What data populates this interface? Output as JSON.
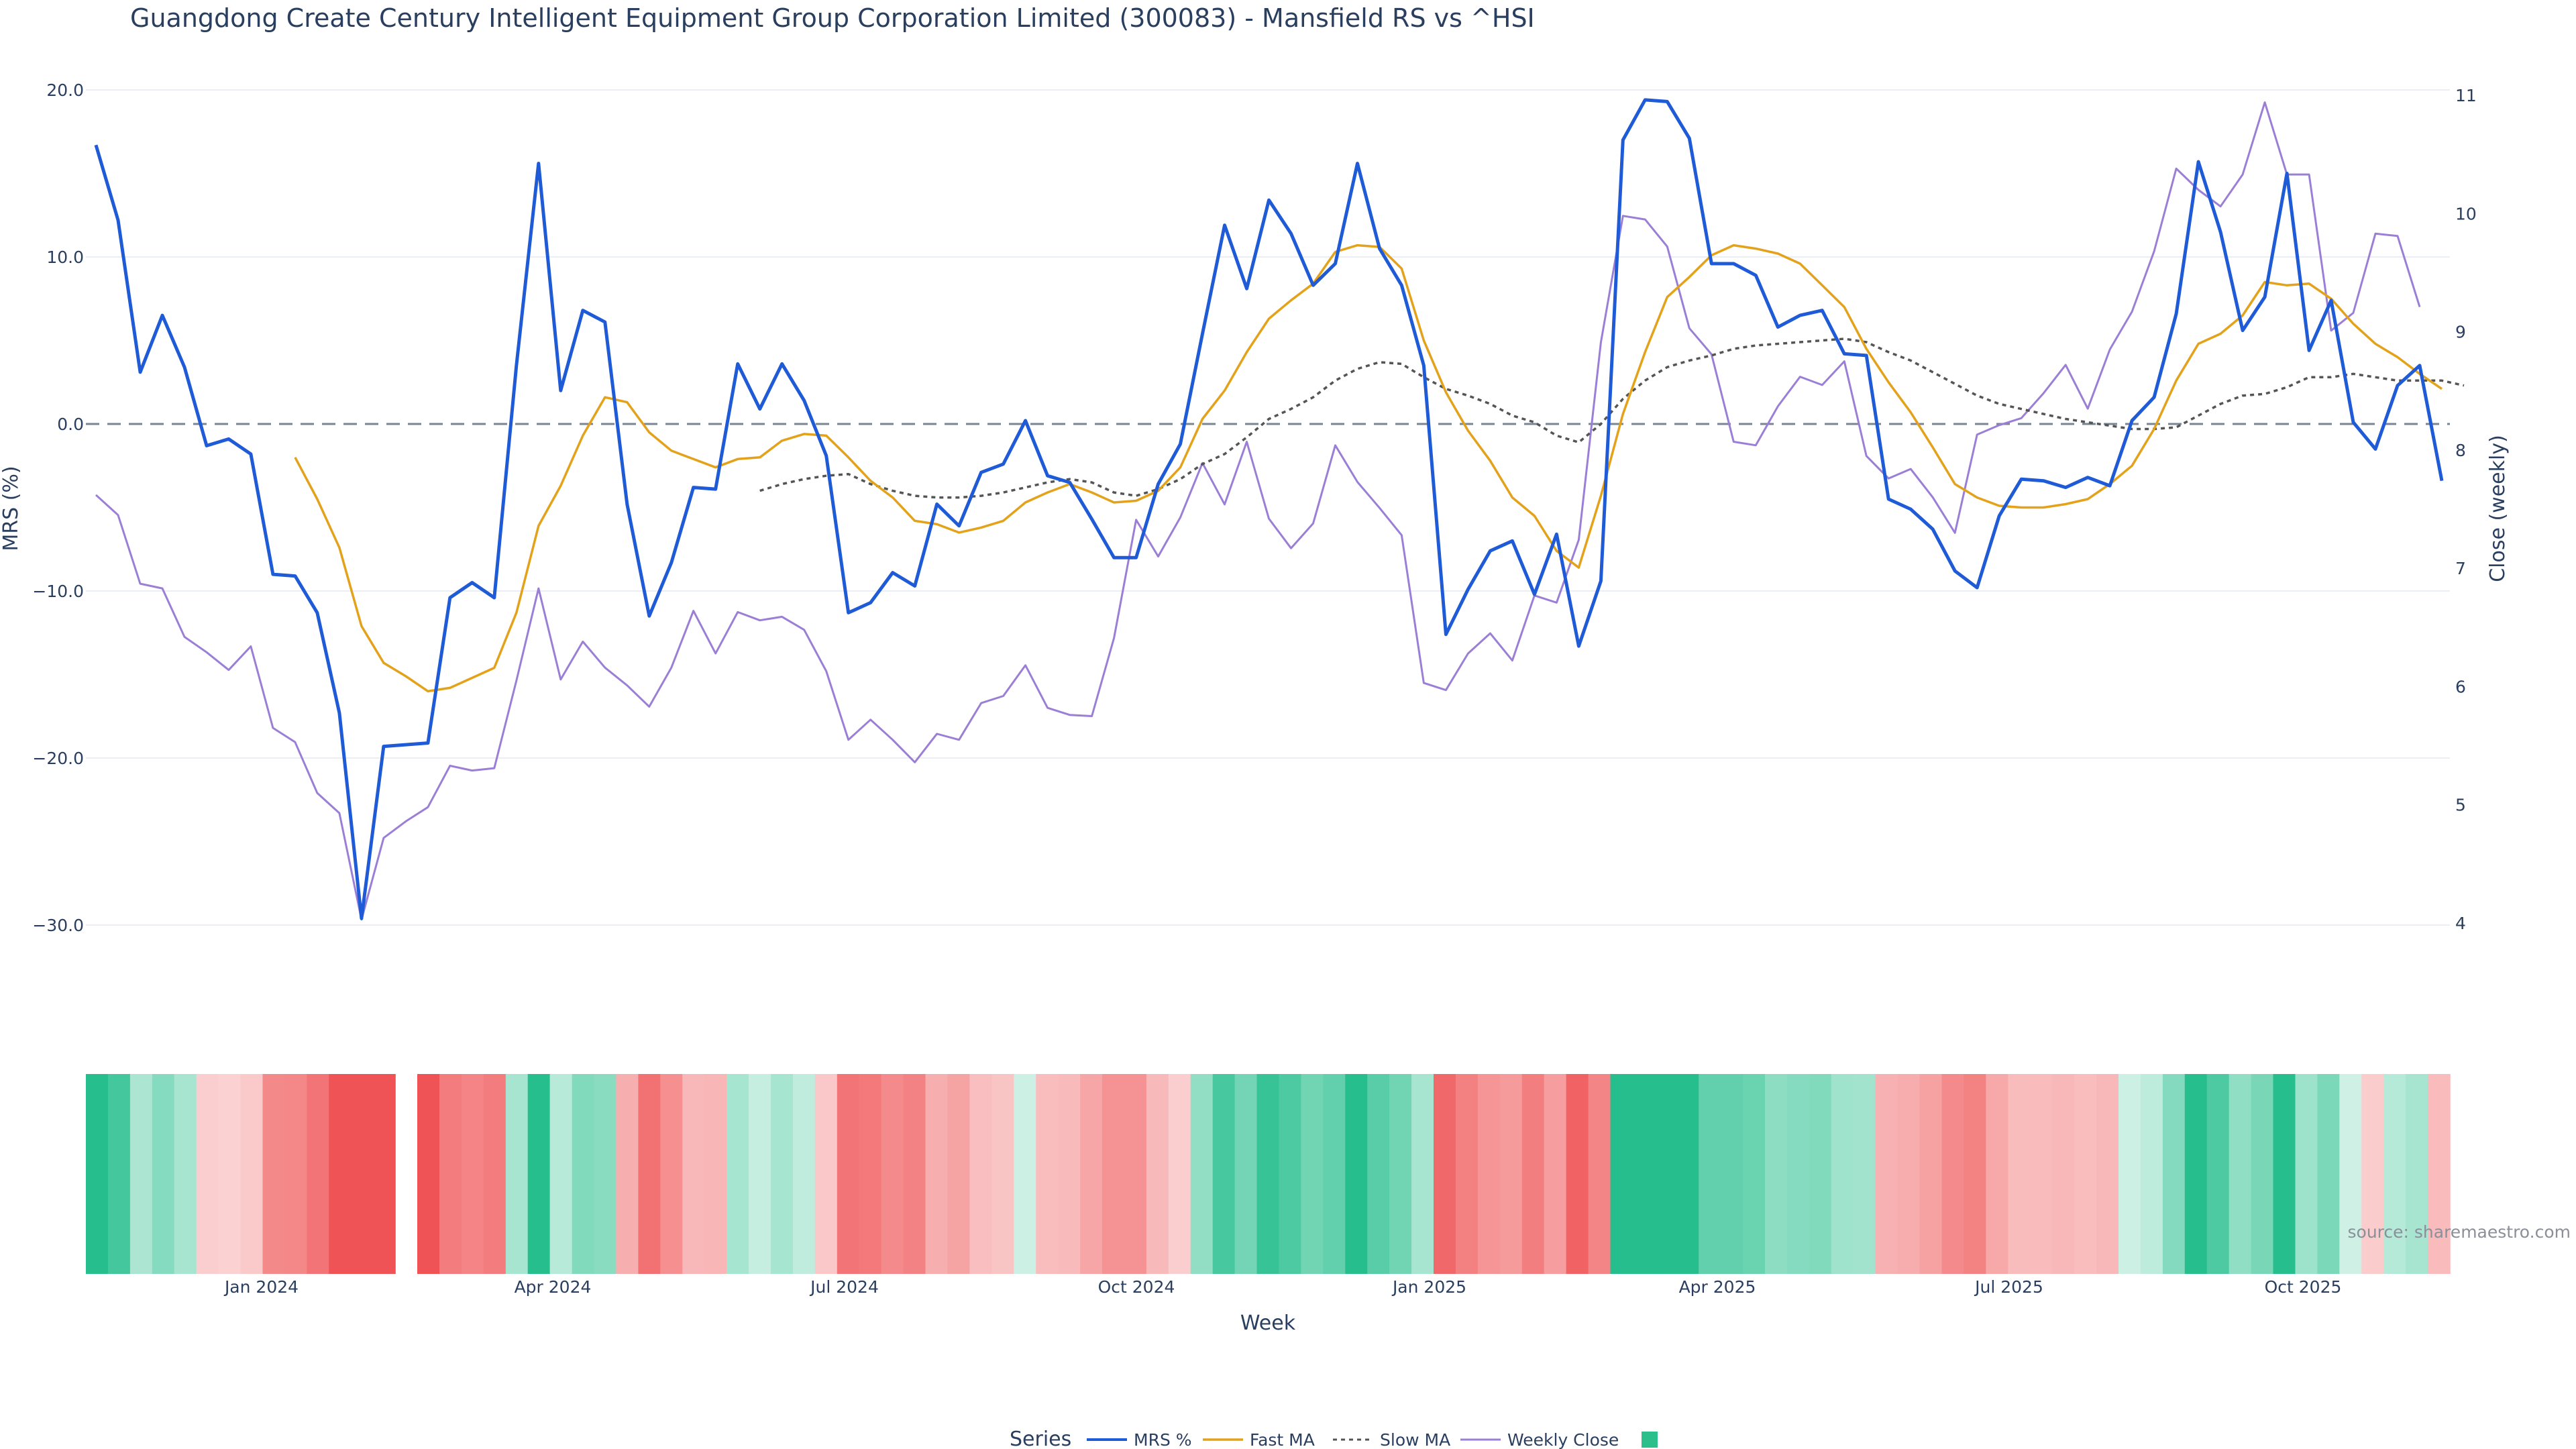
{
  "chart_data": {
    "type": "line",
    "title": "Guangdong Create Century Intelligent Equipment Group Corporation Limited (300083) - Mansfield RS vs ^HSI",
    "xlabel": "Week",
    "ylabel_left": "MRS (%)",
    "ylabel_right": "Close (weekly)",
    "ylim_left": [
      -30,
      20
    ],
    "ylim_right": [
      4,
      11
    ],
    "yticks_left": [
      "20.0",
      "10.0",
      "0.0",
      "−10.0",
      "−20.0",
      "−30.0"
    ],
    "yticks_right": [
      "11",
      "10",
      "9",
      "8",
      "7",
      "6",
      "5",
      "4"
    ],
    "x_tick_labels": [
      "Jan 2024",
      "Apr 2024",
      "Jul 2024",
      "Oct 2024",
      "Jan 2025",
      "Apr 2025",
      "Jul 2025",
      "Oct 2025"
    ],
    "legend_title": "Series",
    "source": "source: sharemaestro.com",
    "series": [
      {
        "name": "MRS %",
        "color": "#1f5bd6",
        "axis": "left",
        "values": [
          16.7,
          12.2,
          3.1,
          6.5,
          3.4,
          -1.3,
          -0.9,
          -1.8,
          -9.0,
          -9.1,
          -11.3,
          -17.3,
          -29.6,
          -19.3,
          -19.2,
          -19.1,
          -10.4,
          -9.5,
          -10.4,
          3.5,
          15.6,
          2.0,
          6.8,
          6.1,
          -4.8,
          -11.5,
          -8.3,
          -3.8,
          -3.9,
          3.6,
          0.9,
          3.6,
          1.4,
          -1.9,
          -11.3,
          -10.7,
          -8.9,
          -9.7,
          -4.8,
          -6.1,
          -2.9,
          -2.4,
          0.2,
          -3.1,
          -3.5,
          -5.7,
          -8.0,
          -8.0,
          -3.6,
          -1.2,
          5.4,
          11.9,
          8.1,
          13.4,
          11.4,
          8.3,
          9.6,
          15.6,
          10.5,
          8.3,
          3.5,
          -12.6,
          -9.9,
          -7.6,
          -7.0,
          -10.2,
          -6.6,
          -13.3,
          -9.4,
          17.0,
          19.4,
          19.3,
          17.1,
          9.6,
          9.6,
          8.9,
          5.8,
          6.5,
          6.8,
          4.2,
          4.1,
          -4.5,
          -5.1,
          -6.3,
          -8.8,
          -9.8,
          -5.5,
          -3.3,
          -3.4,
          -3.8,
          -3.2,
          -3.7,
          0.2,
          1.6,
          6.6,
          15.7,
          11.5,
          5.6,
          7.6,
          15.0,
          4.4,
          7.4,
          0.1,
          -1.5,
          2.3,
          3.5,
          -3.4
        ]
      },
      {
        "name": "Fast MA",
        "color": "#e3a21a",
        "axis": "left",
        "start_index": 9,
        "values": [
          -2.0,
          -4.5,
          -7.4,
          -12.1,
          -14.3,
          -15.1,
          -16.0,
          -15.8,
          -15.2,
          -14.6,
          -11.3,
          -6.1,
          -3.7,
          -0.7,
          1.6,
          1.3,
          -0.5,
          -1.6,
          -2.1,
          -2.6,
          -2.1,
          -2.0,
          -1.0,
          -0.6,
          -0.7,
          -2.0,
          -3.4,
          -4.4,
          -5.8,
          -6.0,
          -6.5,
          -6.2,
          -5.8,
          -4.7,
          -4.1,
          -3.6,
          -4.1,
          -4.7,
          -4.6,
          -4.0,
          -2.6,
          0.3,
          2.0,
          4.3,
          6.3,
          7.4,
          8.4,
          10.3,
          10.7,
          10.6,
          9.3,
          5.0,
          1.9,
          -0.4,
          -2.2,
          -4.4,
          -5.5,
          -7.6,
          -8.6,
          -4.3,
          0.6,
          4.3,
          7.6,
          8.8,
          10.1,
          10.7,
          10.5,
          10.2,
          9.6,
          8.3,
          7.0,
          4.5,
          2.5,
          0.7,
          -1.4,
          -3.6,
          -4.4,
          -4.9,
          -5.0,
          -5.0,
          -4.8,
          -4.5,
          -3.6,
          -2.5,
          -0.3,
          2.6,
          4.8,
          5.4,
          6.5,
          8.5,
          8.3,
          8.4,
          7.5,
          6.0,
          4.8,
          4.0,
          3.0,
          2.1
        ]
      },
      {
        "name": "Slow MA",
        "color": "#555555",
        "axis": "left",
        "dashed": true,
        "start_index": 30,
        "values": [
          -4.0,
          -3.6,
          -3.3,
          -3.1,
          -3.0,
          -3.6,
          -4.0,
          -4.3,
          -4.4,
          -4.4,
          -4.3,
          -4.1,
          -3.8,
          -3.5,
          -3.3,
          -3.5,
          -4.1,
          -4.3,
          -3.9,
          -3.3,
          -2.4,
          -1.8,
          -0.8,
          0.3,
          0.9,
          1.6,
          2.6,
          3.3,
          3.7,
          3.6,
          2.8,
          2.1,
          1.7,
          1.2,
          0.5,
          0.1,
          -0.7,
          -1.1,
          0.0,
          1.5,
          2.6,
          3.4,
          3.8,
          4.1,
          4.5,
          4.7,
          4.8,
          4.9,
          5.0,
          5.1,
          4.9,
          4.3,
          3.8,
          3.1,
          2.4,
          1.7,
          1.2,
          0.9,
          0.6,
          0.3,
          0.1,
          -0.1,
          -0.3,
          -0.3,
          -0.2,
          0.5,
          1.2,
          1.7,
          1.8,
          2.2,
          2.8,
          2.8,
          3.0,
          2.8,
          2.6,
          2.6,
          2.6,
          2.3
        ]
      },
      {
        "name": "Weekly Close",
        "color": "#9b7fd6",
        "axis": "right",
        "values": [
          7.62,
          7.45,
          6.87,
          6.83,
          6.42,
          6.29,
          6.14,
          6.34,
          5.65,
          5.53,
          5.1,
          4.93,
          4.03,
          4.72,
          4.86,
          4.98,
          5.33,
          5.29,
          5.31,
          6.05,
          6.83,
          6.06,
          6.38,
          6.16,
          6.01,
          5.83,
          6.16,
          6.64,
          6.28,
          6.63,
          6.56,
          6.59,
          6.48,
          6.13,
          5.55,
          5.72,
          5.55,
          5.36,
          5.6,
          5.55,
          5.86,
          5.92,
          6.18,
          5.82,
          5.76,
          5.75,
          6.41,
          7.41,
          7.1,
          7.43,
          7.89,
          7.54,
          8.07,
          7.42,
          7.17,
          7.38,
          8.04,
          7.73,
          7.51,
          7.28,
          6.03,
          5.97,
          6.28,
          6.45,
          6.22,
          6.77,
          6.71,
          7.24,
          8.91,
          9.98,
          9.95,
          9.72,
          9.03,
          8.81,
          8.07,
          8.04,
          8.37,
          8.62,
          8.55,
          8.75,
          7.95,
          7.76,
          7.84,
          7.6,
          7.3,
          8.13,
          8.21,
          8.27,
          8.48,
          8.72,
          8.35,
          8.85,
          9.17,
          9.68,
          10.38,
          10.2,
          10.06,
          10.33,
          10.94,
          10.33,
          10.33,
          9.01,
          9.16,
          9.83,
          9.81,
          9.21
        ]
      }
    ],
    "heatmap": {
      "note": "per-week MRS strip; green = positive, red = negative",
      "gap_after_index": 13,
      "source_series": "MRS %"
    }
  }
}
